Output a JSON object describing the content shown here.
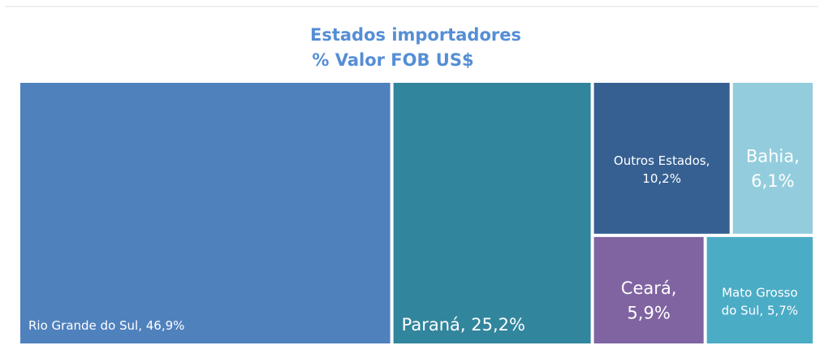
{
  "chart_data": {
    "type": "treemap",
    "title": [
      "Estados importadores",
      "% Valor FOB US$"
    ],
    "labels": [
      "Rio Grande do Sul, 46,9%",
      "Paraná, 25,2%",
      "Outros Estados, 10,2%",
      "Bahia, 6,1%",
      "Ceará, 5,9%",
      "Mato Grosso do Sul, 5,7%"
    ],
    "values": [
      46.9,
      25.2,
      10.2,
      6.1,
      5.9,
      5.7
    ],
    "colors": [
      "#4f81bd",
      "#31859c",
      "#366092",
      "#93cddd",
      "#8064a2",
      "#4bacc6"
    ]
  }
}
